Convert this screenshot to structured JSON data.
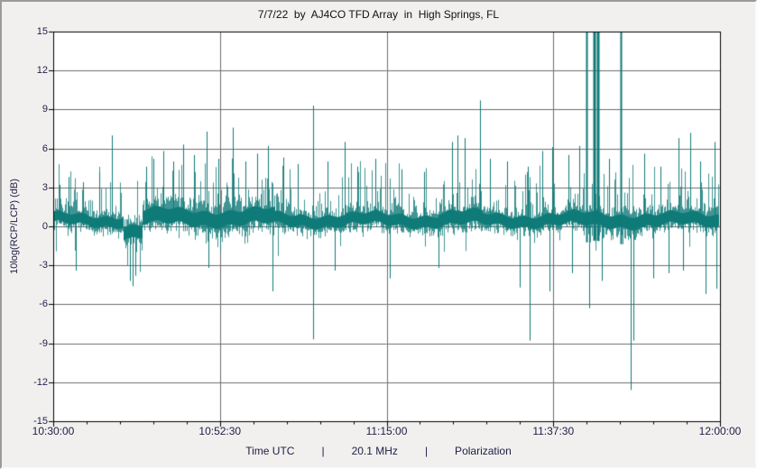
{
  "chart_data": {
    "type": "line",
    "title": "7/7/22  by  AJ4CO TFD Array  in  High Springs, FL",
    "xlabel": "Time UTC         |         20.1 MHz         |         Polarization",
    "ylabel": "10log(RCP/LCP) (dB)",
    "x_ticks": [
      "10:30:00",
      "10:52:30",
      "11:15:00",
      "11:37:30",
      "12:00:00"
    ],
    "y_ticks": [
      "15",
      "12",
      "9",
      "6",
      "3",
      "0",
      "-3",
      "-6",
      "-9",
      "-12",
      "-15"
    ],
    "ylim": [
      -15,
      15
    ],
    "x_range_minutes": 90,
    "grid": true,
    "legend": false,
    "colors": {
      "signal": "#0f7b78",
      "plot_bg": "#ffffff",
      "frame_bg": "#f1f0ee",
      "grid": "#6e6e6e",
      "axis": "#000000",
      "text": "#1e1e46",
      "title_text": "#111111"
    },
    "seed": 20220707,
    "baseline_db": 0.5,
    "noise_segments": [
      {
        "from": 0,
        "to": 9.5,
        "amp": 0.85,
        "shift": 0
      },
      {
        "from": 9.5,
        "to": 12,
        "amp": 1.1,
        "shift": -0.9
      },
      {
        "from": 12,
        "to": 30,
        "amp": 1.25,
        "shift": 0.2
      },
      {
        "from": 30,
        "to": 52,
        "amp": 0.95,
        "shift": 0
      },
      {
        "from": 52,
        "to": 58,
        "amp": 1.15,
        "shift": 0.1
      },
      {
        "from": 58,
        "to": 70,
        "amp": 0.95,
        "shift": 0
      },
      {
        "from": 70,
        "to": 80,
        "amp": 1.1,
        "shift": 0
      },
      {
        "from": 80,
        "to": 90.1,
        "amp": 1.0,
        "shift": 0
      }
    ],
    "random_spikes": {
      "up_prob": 0.3,
      "up_min": 1.3,
      "up_max": 4.6,
      "down_prob": 0.085,
      "down_min": 1.1,
      "down_max": 3.2
    },
    "spike_events": [
      [
        0.8,
        3.2
      ],
      [
        2.1,
        3.8
      ],
      [
        3.0,
        -3.4
      ],
      [
        4.0,
        3.4
      ],
      [
        6.2,
        4.2
      ],
      [
        7.9,
        7.0
      ],
      [
        10.3,
        -4.2
      ],
      [
        10.7,
        -4.6
      ],
      [
        11.1,
        -3.8
      ],
      [
        12.6,
        4.6
      ],
      [
        13.5,
        5.2
      ],
      [
        14.8,
        5.8
      ],
      [
        16.2,
        5.0
      ],
      [
        17.5,
        6.3
      ],
      [
        19.0,
        5.5
      ],
      [
        20.7,
        7.3
      ],
      [
        21.0,
        -3.2
      ],
      [
        22.3,
        5.2
      ],
      [
        24.2,
        7.6
      ],
      [
        26.0,
        5.0
      ],
      [
        27.5,
        5.6
      ],
      [
        29.0,
        6.2
      ],
      [
        29.6,
        -5.0
      ],
      [
        31.0,
        5.3
      ],
      [
        33.0,
        4.8
      ],
      [
        35.1,
        9.3
      ],
      [
        35.1,
        -8.7
      ],
      [
        37.0,
        5.0
      ],
      [
        38.0,
        -3.4
      ],
      [
        39.3,
        6.5
      ],
      [
        41.0,
        4.6
      ],
      [
        43.5,
        5.2
      ],
      [
        45.4,
        -4.0
      ],
      [
        47.0,
        4.4
      ],
      [
        50.0,
        4.2
      ],
      [
        52.0,
        -3.2
      ],
      [
        53.8,
        6.5
      ],
      [
        54.6,
        7.0
      ],
      [
        55.5,
        6.8
      ],
      [
        57.6,
        9.7
      ],
      [
        59.0,
        5.2
      ],
      [
        61.3,
        5.0
      ],
      [
        63.0,
        -4.7
      ],
      [
        64.0,
        4.6
      ],
      [
        64.3,
        -8.8
      ],
      [
        66.0,
        5.8
      ],
      [
        67.0,
        -5.0
      ],
      [
        67.3,
        6.1
      ],
      [
        69.5,
        5.5
      ],
      [
        70.0,
        -3.6
      ],
      [
        71.0,
        6.2
      ],
      [
        72.0,
        15.5
      ],
      [
        72.4,
        -6.3
      ],
      [
        72.9,
        15.5
      ],
      [
        73.1,
        15.5
      ],
      [
        73.45,
        15.5
      ],
      [
        73.6,
        15.5
      ],
      [
        74.0,
        -4.2
      ],
      [
        75.0,
        5.2
      ],
      [
        76.6,
        15.5
      ],
      [
        78.0,
        -12.6
      ],
      [
        78.3,
        -8.8
      ],
      [
        79.8,
        5.6
      ],
      [
        81.0,
        -4.0
      ],
      [
        82.0,
        4.6
      ],
      [
        83.0,
        -3.6
      ],
      [
        84.4,
        6.8
      ],
      [
        85.0,
        -3.4
      ],
      [
        86.0,
        7.2
      ],
      [
        87.3,
        5.0
      ],
      [
        88.0,
        -5.2
      ],
      [
        89.3,
        6.5
      ],
      [
        89.5,
        -4.8
      ]
    ]
  }
}
